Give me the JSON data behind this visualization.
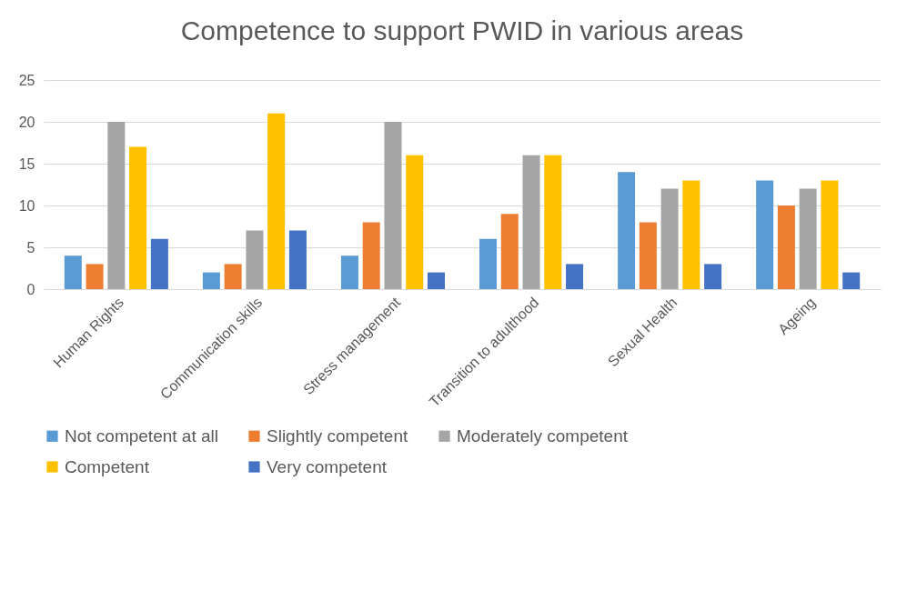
{
  "chart_data": {
    "type": "bar",
    "title": "Competence to support PWID in various areas",
    "categories": [
      "Human Rights",
      "Communication skills",
      "Stress management",
      "Transition to adulthood",
      "Sexual Health",
      "Ageing"
    ],
    "series": [
      {
        "name": "Not competent at all",
        "color": "#5b9bd5",
        "values": [
          4,
          2,
          4,
          6,
          14,
          13
        ]
      },
      {
        "name": "Slightly competent",
        "color": "#ed7d31",
        "values": [
          3,
          3,
          8,
          9,
          8,
          10
        ]
      },
      {
        "name": "Moderately competent",
        "color": "#a5a5a5",
        "values": [
          20,
          7,
          20,
          16,
          12,
          12
        ]
      },
      {
        "name": "Competent",
        "color": "#ffc000",
        "values": [
          17,
          21,
          16,
          16,
          13,
          13
        ]
      },
      {
        "name": "Very competent",
        "color": "#4472c4",
        "values": [
          6,
          7,
          2,
          3,
          3,
          2
        ]
      }
    ],
    "ylim": [
      0,
      25
    ],
    "yticks": [
      0,
      5,
      10,
      15,
      20,
      25
    ],
    "grid": "y",
    "legend": "bottom"
  }
}
